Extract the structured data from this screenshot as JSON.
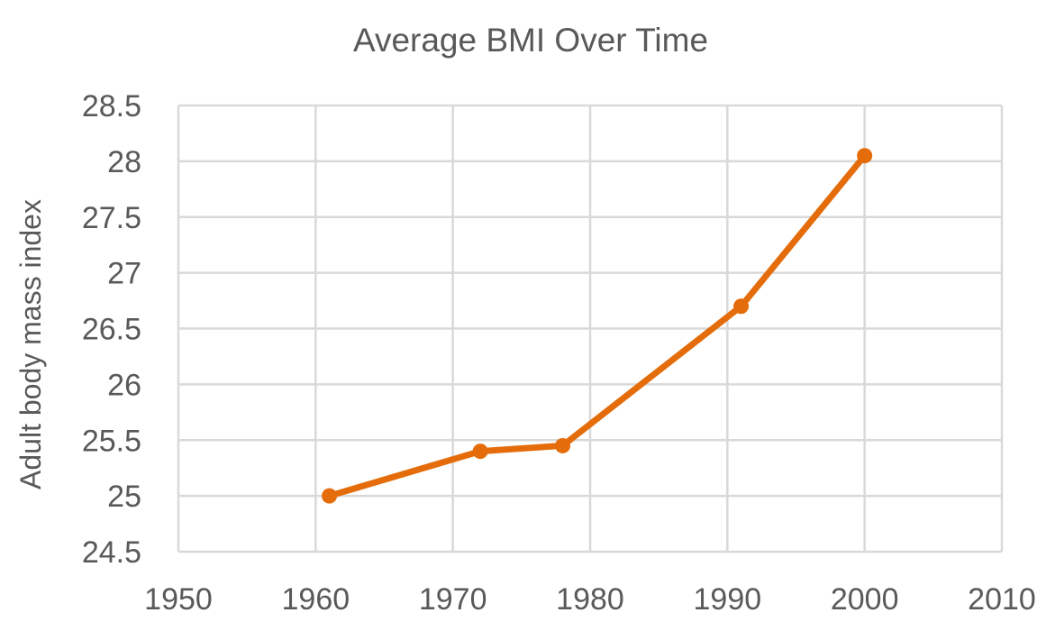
{
  "chart_data": {
    "type": "scatter",
    "title": "Average BMI Over Time",
    "xlabel": "",
    "ylabel": "Adult body mass index",
    "xlim": [
      1950,
      2010
    ],
    "ylim": [
      24.5,
      28.5
    ],
    "x_ticks": [
      "1950",
      "1960",
      "1970",
      "1980",
      "1990",
      "2000",
      "2010"
    ],
    "y_ticks": [
      "24.5",
      "25",
      "25.5",
      "26",
      "26.5",
      "27",
      "27.5",
      "28",
      "28.5"
    ],
    "grid": true,
    "legend": "none",
    "series": [
      {
        "color": "#e46c0a",
        "marker": "circle",
        "lines": true,
        "points": [
          {
            "x": 1961,
            "y": 25.0
          },
          {
            "x": 1972,
            "y": 25.4
          },
          {
            "x": 1978,
            "y": 25.45
          },
          {
            "x": 1991,
            "y": 26.7
          },
          {
            "x": 2000,
            "y": 28.05
          }
        ]
      }
    ]
  }
}
